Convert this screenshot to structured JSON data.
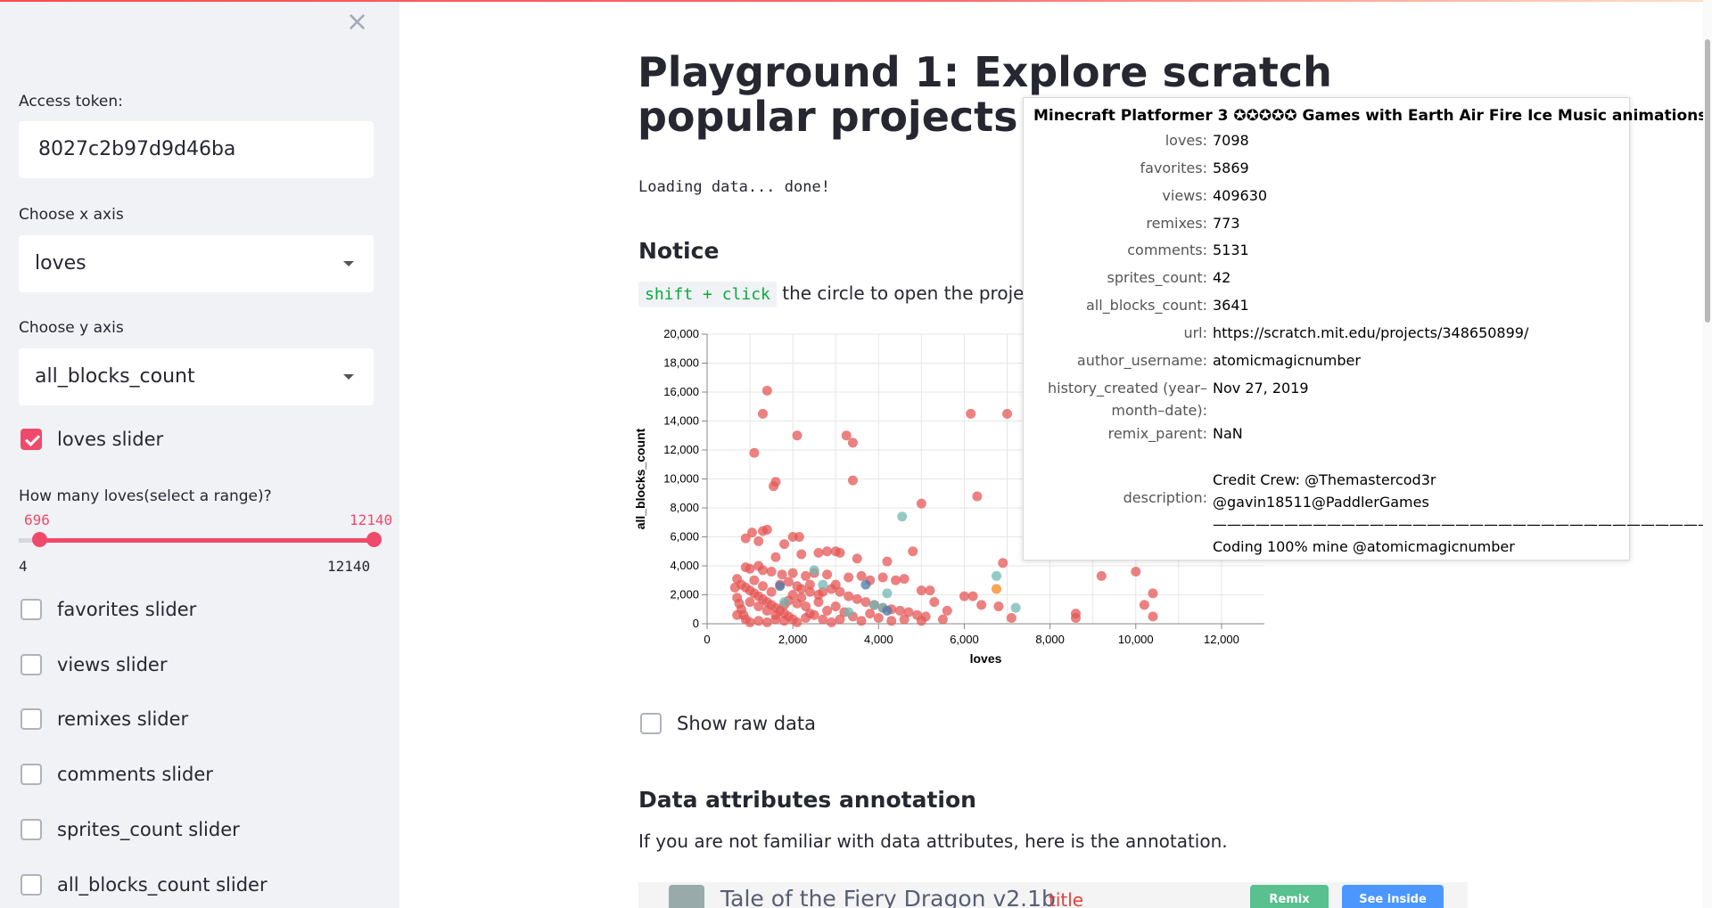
{
  "sidebar": {
    "close_label": "×",
    "access_token_label": "Access token:",
    "access_token_value": "8027c2b97d9d46ba",
    "x_axis_label": "Choose x axis",
    "x_axis_value": "loves",
    "y_axis_label": "Choose y axis",
    "y_axis_value": "all_blocks_count",
    "loves_slider_label": "loves slider",
    "slider": {
      "question": "How many loves(select a range)?",
      "low": "696",
      "high": "12140",
      "min": "4",
      "max": "12140"
    },
    "checkboxes": [
      {
        "label": "favorites slider",
        "checked": false
      },
      {
        "label": "views slider",
        "checked": false
      },
      {
        "label": "remixes slider",
        "checked": false
      },
      {
        "label": "comments slider",
        "checked": false
      },
      {
        "label": "sprites_count slider",
        "checked": false
      },
      {
        "label": "all_blocks_count slider",
        "checked": false
      }
    ]
  },
  "main": {
    "title": "Playground 1: Explore scratch popular projects",
    "loading": "Loading data... done!",
    "notice_heading": "Notice",
    "notice_code": "shift + click",
    "notice_text": "the circle to open the project in a new window.",
    "show_raw_label": "Show raw data",
    "annotation_heading": "Data attributes annotation",
    "annotation_text": "If you are not familiar with data attributes, here is the annotation.",
    "annotation_image": {
      "project_title": "Tale of the Fiery Dragon v2.1b",
      "tag": "title",
      "remix_label": "Remix",
      "see_inside_label": "See inside"
    }
  },
  "tooltip": {
    "title": "Minecraft Platformer 3 ✪✪✪✪✪ Games with Earth Air Fire Ice Music animations",
    "rows": [
      {
        "key": "loves:",
        "value": "7098"
      },
      {
        "key": "favorites:",
        "value": "5869"
      },
      {
        "key": "views:",
        "value": "409630"
      },
      {
        "key": "remixes:",
        "value": "773"
      },
      {
        "key": "comments:",
        "value": "5131"
      },
      {
        "key": "sprites_count:",
        "value": "42"
      },
      {
        "key": "all_blocks_count:",
        "value": "3641"
      },
      {
        "key": "url:",
        "value": "https://scratch.mit.edu/projects/348650899/"
      },
      {
        "key": "author_username:",
        "value": "atomicmagicnumber"
      },
      {
        "key": "history_created (year–month–date):",
        "value": "Nov 27, 2019"
      },
      {
        "key": "remix_parent:",
        "value": "NaN"
      },
      {
        "key": "description:",
        "value": "Credit Crew: @Themastercod3r @gavin18511@PaddlerGames ———————————————————————————————————— Coding 100% mine @atomicmagicnumber"
      }
    ]
  },
  "colors": {
    "accent": "#f04a6b",
    "point_red": "#e45756",
    "point_teal": "#72b7b2",
    "point_blue": "#4c78a8",
    "point_orange": "#f58518"
  },
  "chart_data": {
    "type": "scatter",
    "xlabel": "loves",
    "ylabel": "all_blocks_count",
    "xlim": [
      0,
      13000
    ],
    "ylim": [
      0,
      20000
    ],
    "xticks": [
      "0",
      "2,000",
      "4,000",
      "6,000",
      "8,000",
      "10,000",
      "12,000"
    ],
    "yticks": [
      "0",
      "2,000",
      "4,000",
      "6,000",
      "8,000",
      "10,000",
      "12,000",
      "14,000",
      "16,000",
      "18,000",
      "20,000"
    ],
    "series": [
      {
        "color": "#e45756",
        "points": [
          [
            1400,
            16100
          ],
          [
            1300,
            14500
          ],
          [
            1100,
            11800
          ],
          [
            2100,
            13000
          ],
          [
            3250,
            13000
          ],
          [
            3400,
            12500
          ],
          [
            1600,
            9800
          ],
          [
            1550,
            9500
          ],
          [
            3400,
            9900
          ],
          [
            6150,
            14500
          ],
          [
            7000,
            14500
          ],
          [
            6300,
            8800
          ],
          [
            5000,
            8300
          ],
          [
            1050,
            6300
          ],
          [
            1300,
            6400
          ],
          [
            1400,
            6500
          ],
          [
            900,
            5900
          ],
          [
            1200,
            5700
          ],
          [
            2000,
            6000
          ],
          [
            2150,
            6000
          ],
          [
            1800,
            5500
          ],
          [
            2800,
            5000
          ],
          [
            3000,
            5000
          ],
          [
            2600,
            4900
          ],
          [
            3100,
            4900
          ],
          [
            4200,
            4300
          ],
          [
            4800,
            5000
          ],
          [
            2200,
            4800
          ],
          [
            3500,
            4500
          ],
          [
            1600,
            4600
          ],
          [
            900,
            3900
          ],
          [
            1000,
            3800
          ],
          [
            1200,
            4000
          ],
          [
            1300,
            3700
          ],
          [
            1500,
            3600
          ],
          [
            1750,
            3400
          ],
          [
            2000,
            3500
          ],
          [
            2300,
            3300
          ],
          [
            2500,
            3500
          ],
          [
            2800,
            3400
          ],
          [
            3300,
            3200
          ],
          [
            3600,
            3300
          ],
          [
            3800,
            3000
          ],
          [
            4100,
            3200
          ],
          [
            4400,
            3000
          ],
          [
            4600,
            3100
          ],
          [
            5000,
            2300
          ],
          [
            5200,
            2300
          ],
          [
            6000,
            1900
          ],
          [
            6200,
            1900
          ],
          [
            6900,
            4200
          ],
          [
            10000,
            3600
          ],
          [
            9200,
            3300
          ],
          [
            10400,
            2100
          ],
          [
            10200,
            1300
          ],
          [
            10400,
            500
          ],
          [
            8600,
            700
          ],
          [
            8600,
            400
          ],
          [
            5300,
            1500
          ],
          [
            5600,
            900
          ],
          [
            6400,
            1300
          ],
          [
            6800,
            1200
          ],
          [
            7100,
            400
          ],
          [
            2400,
            2200
          ],
          [
            2600,
            2000
          ],
          [
            2900,
            2400
          ],
          [
            3100,
            2200
          ],
          [
            3300,
            1900
          ],
          [
            3500,
            1700
          ],
          [
            3700,
            1500
          ],
          [
            3900,
            1300
          ],
          [
            4100,
            1100
          ],
          [
            4300,
            1000
          ],
          [
            4500,
            900
          ],
          [
            4700,
            800
          ],
          [
            4900,
            600
          ],
          [
            5100,
            500
          ],
          [
            800,
            2700
          ],
          [
            900,
            2500
          ],
          [
            1000,
            2300
          ],
          [
            1100,
            2100
          ],
          [
            1200,
            1900
          ],
          [
            1300,
            1700
          ],
          [
            1400,
            1500
          ],
          [
            1500,
            1300
          ],
          [
            1600,
            1100
          ],
          [
            1700,
            900
          ],
          [
            1800,
            700
          ],
          [
            1900,
            500
          ],
          [
            2000,
            300
          ],
          [
            700,
            1800
          ],
          [
            750,
            1400
          ],
          [
            800,
            1000
          ],
          [
            850,
            600
          ],
          [
            900,
            300
          ],
          [
            1000,
            100
          ],
          [
            1200,
            200
          ],
          [
            1400,
            100
          ],
          [
            1600,
            300
          ],
          [
            1800,
            200
          ],
          [
            2100,
            100
          ],
          [
            2300,
            400
          ],
          [
            2500,
            600
          ],
          [
            2700,
            300
          ],
          [
            2900,
            100
          ],
          [
            3100,
            300
          ],
          [
            3400,
            500
          ],
          [
            3600,
            200
          ],
          [
            3800,
            700
          ],
          [
            4000,
            400
          ],
          [
            4300,
            200
          ],
          [
            4600,
            300
          ],
          [
            5000,
            200
          ],
          [
            5500,
            300
          ],
          [
            700,
            3100
          ],
          [
            650,
            2500
          ],
          [
            700,
            600
          ],
          [
            1900,
            2900
          ],
          [
            2100,
            2600
          ],
          [
            2300,
            1200
          ],
          [
            2600,
            1500
          ],
          [
            2800,
            900
          ],
          [
            3000,
            1200
          ],
          [
            3200,
            800
          ],
          [
            2200,
            1800
          ],
          [
            1500,
            2200
          ],
          [
            1300,
            2600
          ],
          [
            1100,
            3000
          ],
          [
            1700,
            2700
          ],
          [
            1900,
            1600
          ],
          [
            2100,
            1400
          ],
          [
            2400,
            700
          ],
          [
            1000,
            1500
          ],
          [
            1200,
            1200
          ],
          [
            1400,
            900
          ],
          [
            1600,
            600
          ],
          [
            1800,
            1300
          ],
          [
            2000,
            2000
          ],
          [
            2200,
            2400
          ],
          [
            2400,
            2700
          ],
          [
            2700,
            2200
          ],
          [
            3000,
            2700
          ]
        ]
      },
      {
        "color": "#72b7b2",
        "points": [
          [
            4550,
            7400
          ],
          [
            3900,
            1300
          ],
          [
            4100,
            1100
          ],
          [
            6750,
            3300
          ],
          [
            7200,
            1100
          ],
          [
            2500,
            3700
          ],
          [
            2700,
            2700
          ],
          [
            3300,
            800
          ],
          [
            4200,
            2100
          ],
          [
            1800,
            1500
          ]
        ]
      },
      {
        "color": "#4c78a8",
        "points": [
          [
            1700,
            2600
          ],
          [
            3700,
            2700
          ],
          [
            4200,
            900
          ]
        ]
      },
      {
        "color": "#f58518",
        "points": [
          [
            6750,
            2400
          ]
        ]
      }
    ]
  }
}
